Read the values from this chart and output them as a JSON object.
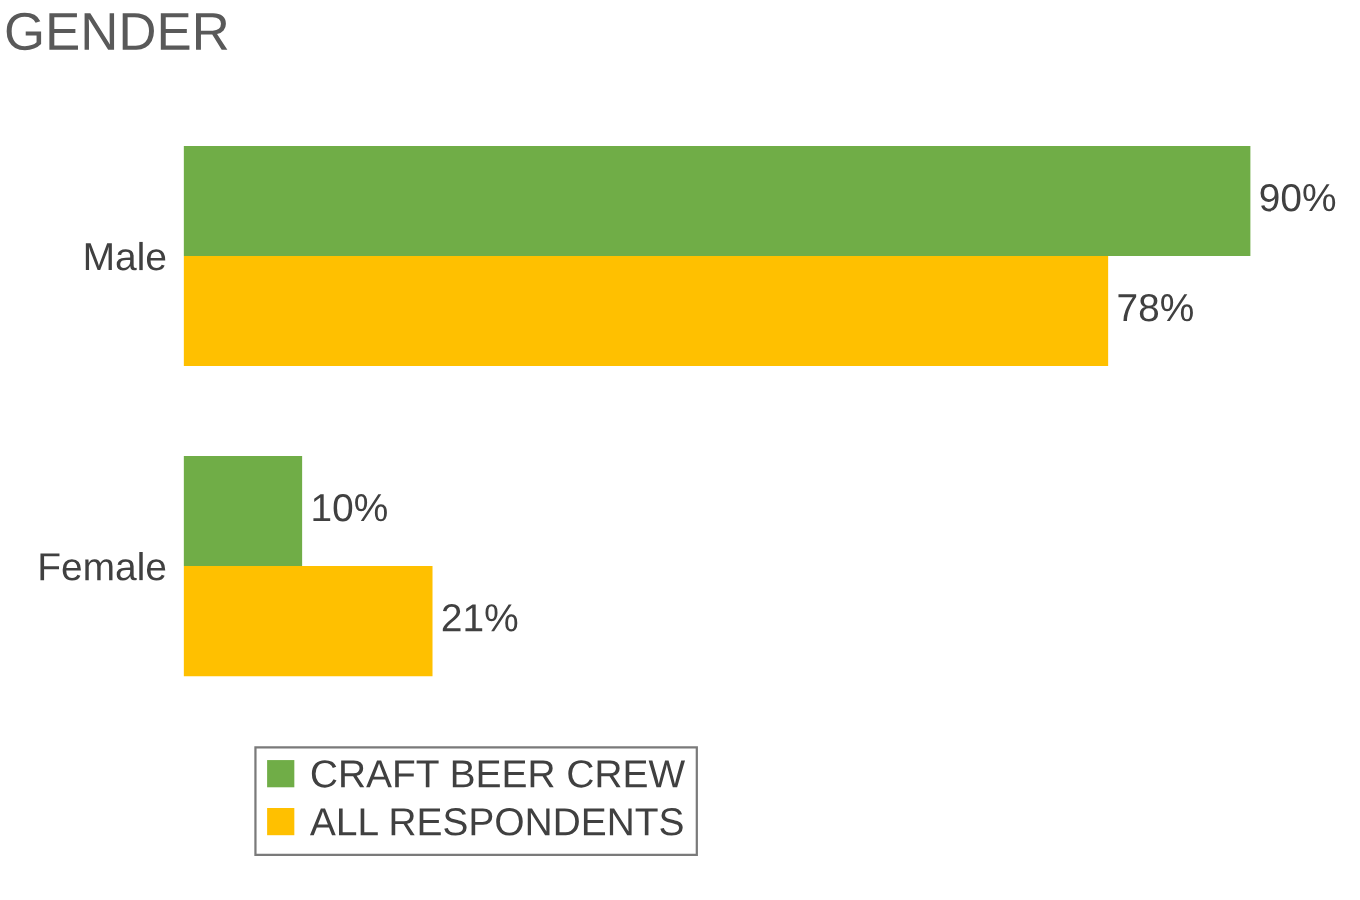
{
  "chart_data": {
    "type": "bar",
    "title": "GENDER",
    "orientation": "horizontal",
    "categories": [
      "Male",
      "Female"
    ],
    "series": [
      {
        "name": "CRAFT BEER CREW",
        "color": "#70ad47",
        "values": [
          90,
          10
        ],
        "value_labels": [
          "90%",
          "10%"
        ]
      },
      {
        "name": "ALL RESPONDENTS",
        "color": "#ffc000",
        "values": [
          78,
          21
        ],
        "value_labels": [
          "78%",
          "21%"
        ]
      }
    ],
    "legend": "bottom",
    "grid": false
  }
}
